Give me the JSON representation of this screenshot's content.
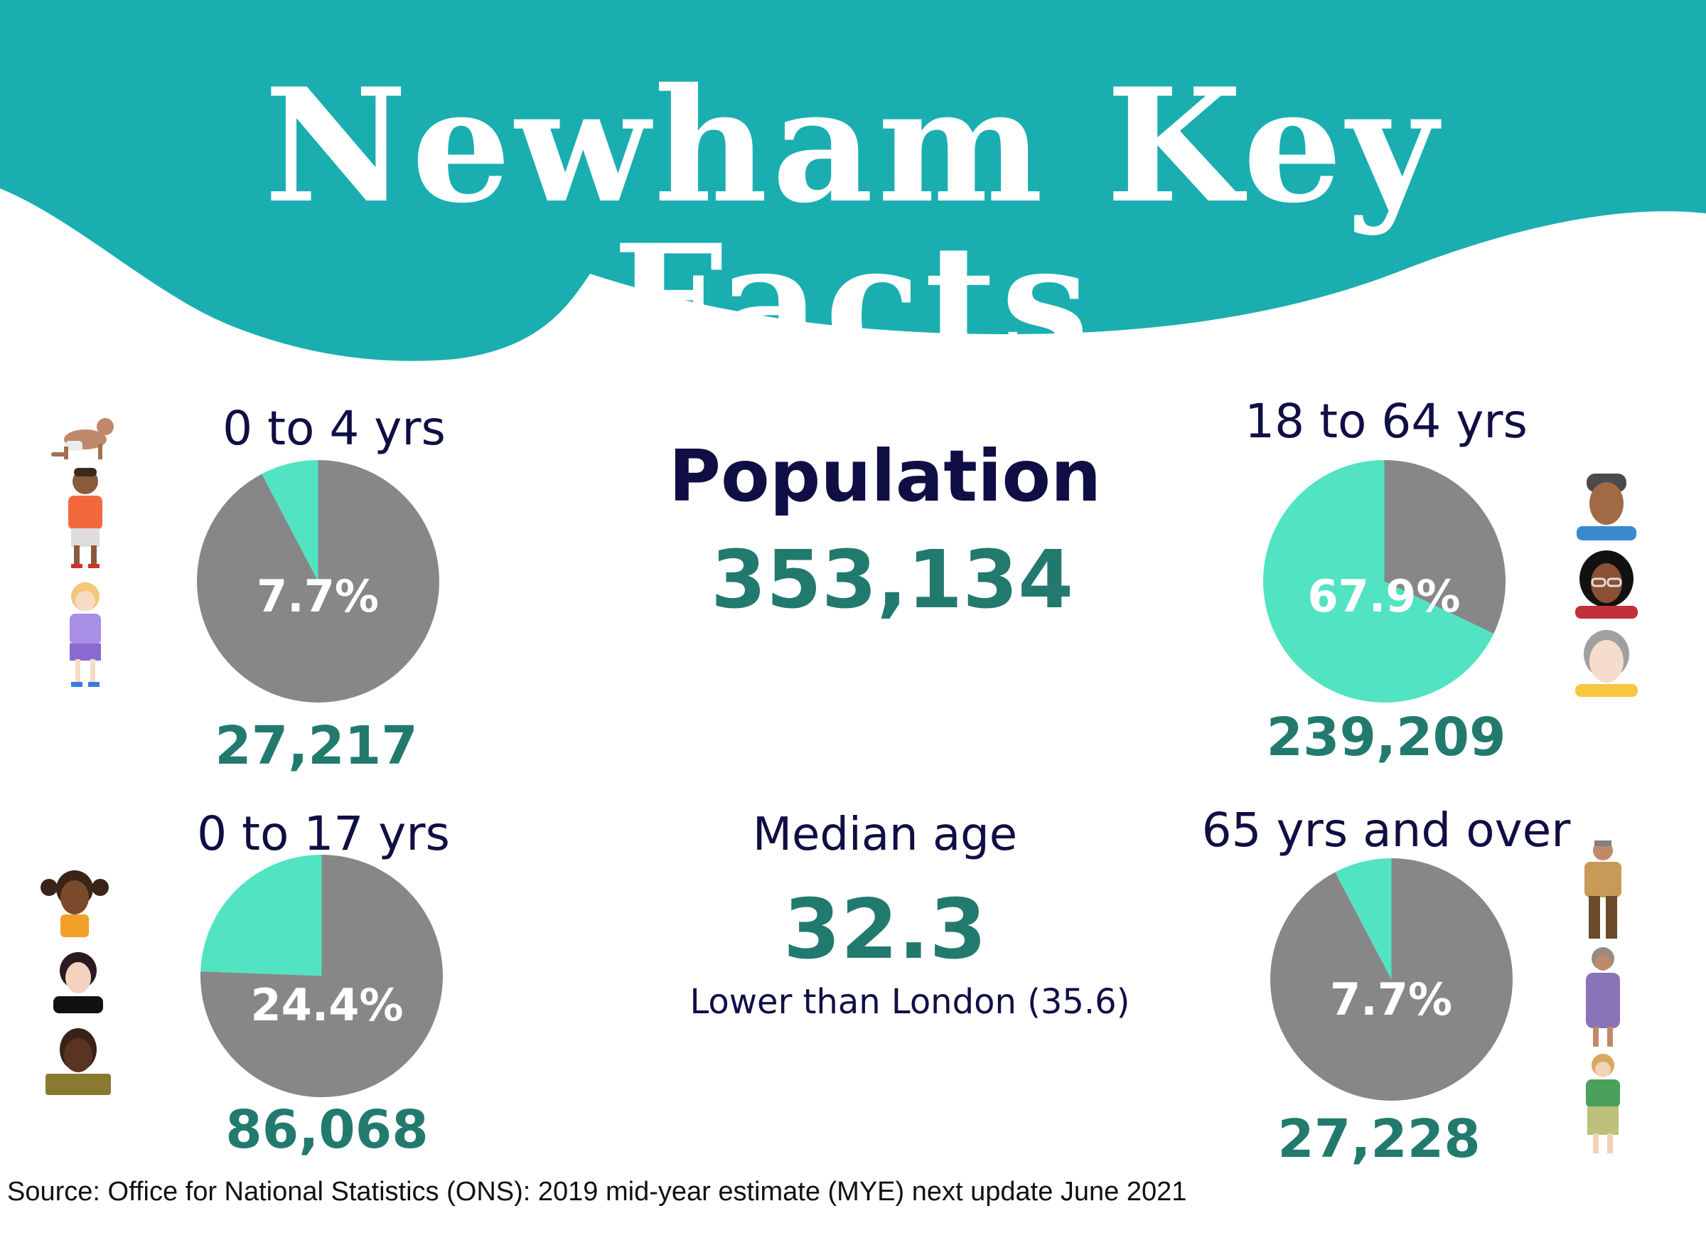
{
  "title": "Newham Key Facts",
  "colors": {
    "header_teal": "#1aaeb0",
    "slice_teal": "#52e3c2",
    "slice_grey": "#878787",
    "number_teal": "#227a6e",
    "label_navy": "#0f0f45"
  },
  "population": {
    "label": "Population",
    "value": "353,134"
  },
  "median_age": {
    "label": "Median  age",
    "value": "32.3",
    "note": "Lower than London  (35.6)"
  },
  "source": "Source: Office for National Statistics (ONS): 2019 mid-year estimate (MYE) next update June 2021",
  "chart_data": [
    {
      "type": "pie",
      "title": "0 to 4 yrs",
      "slices": [
        {
          "value": 7.7,
          "color": "#52e3c2"
        },
        {
          "value": 92.3,
          "color": "#878787"
        }
      ],
      "label": "7.7%",
      "count": "27,217"
    },
    {
      "type": "pie",
      "title": "18 to 64 yrs",
      "slices": [
        {
          "value": 67.9,
          "color": "#52e3c2"
        },
        {
          "value": 32.1,
          "color": "#878787"
        }
      ],
      "label": "67.9%",
      "count": "239,209"
    },
    {
      "type": "pie",
      "title": "0 to 17 yrs",
      "slices": [
        {
          "value": 24.4,
          "color": "#52e3c2"
        },
        {
          "value": 75.6,
          "color": "#878787"
        }
      ],
      "label": "24.4%",
      "count": "86,068"
    },
    {
      "type": "pie",
      "title": "65 yrs and over",
      "slices": [
        {
          "value": 7.7,
          "color": "#52e3c2"
        },
        {
          "value": 92.3,
          "color": "#878787"
        }
      ],
      "label": "7.7%",
      "count": "27,228"
    }
  ],
  "icons": [
    "crawling-baby-icon",
    "boy-icon",
    "girl-icon",
    "man-avatar-icon",
    "woman-glasses-avatar-icon",
    "older-man-avatar-icon",
    "girl-pigtails-avatar-icon",
    "teen-avatar-icon",
    "teen-boy-avatar-icon",
    "elderly-man-icon",
    "elderly-woman-icon",
    "older-woman-icon"
  ]
}
